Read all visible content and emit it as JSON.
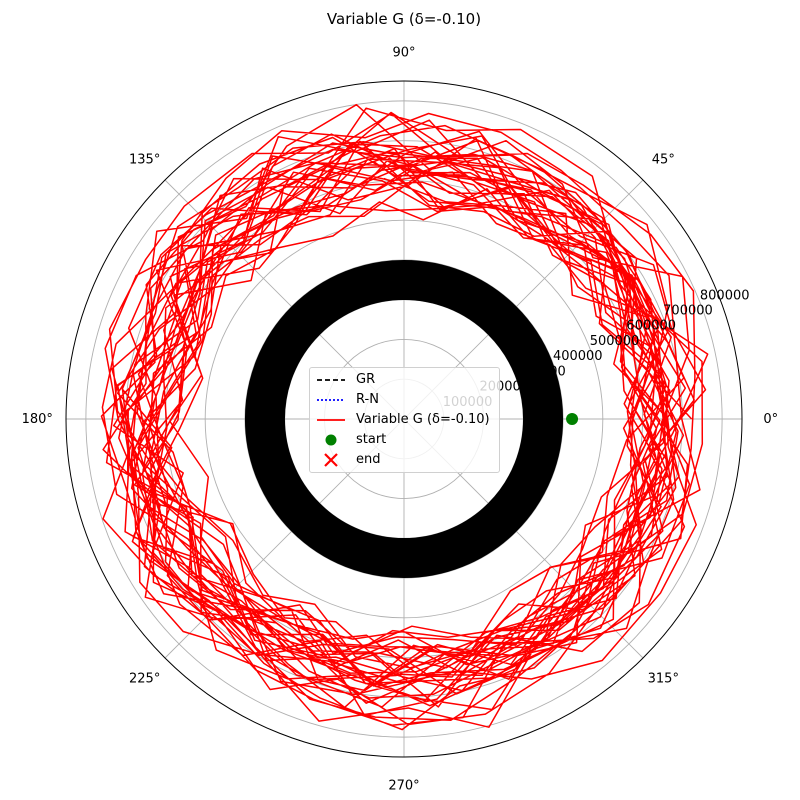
{
  "chart_data": {
    "type": "line",
    "projection": "polar",
    "title": "Variable G (δ=-0.10)",
    "theta_ticks": [
      "0°",
      "45°",
      "90°",
      "135°",
      "180°",
      "225°",
      "270°",
      "315°"
    ],
    "r_ticks": [
      "100000",
      "200000",
      "300000",
      "400000",
      "500000",
      "600000",
      "700000",
      "800000"
    ],
    "rlim": [
      0,
      850000
    ],
    "grid": true,
    "legend_position": "center",
    "central_body": {
      "radius": 400000,
      "color": "#000000"
    },
    "series": [
      {
        "name": "GR",
        "style": "dashed",
        "color": "#000000",
        "values": []
      },
      {
        "name": "R-N",
        "style": "dotted",
        "color": "#0000ff",
        "values": []
      },
      {
        "name": "Variable G (δ=-0.10)",
        "style": "solid",
        "color": "#ff0000",
        "r_min": 430000,
        "r_max": 810000,
        "orbit_count": 34,
        "points_per_orbit": 27
      }
    ],
    "markers": [
      {
        "name": "start",
        "theta_deg": 0,
        "r": 400000,
        "color": "#008000",
        "shape": "circle"
      },
      {
        "name": "end",
        "color": "#ff0000",
        "shape": "x"
      }
    ]
  }
}
